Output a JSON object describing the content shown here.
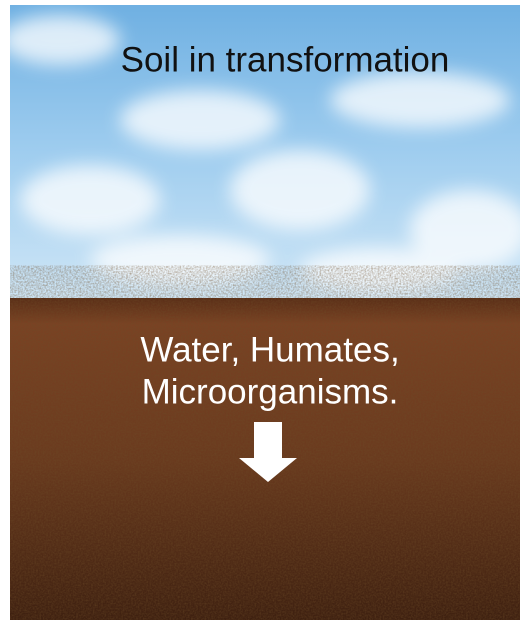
{
  "header": {
    "title": "Soil in transformation"
  },
  "caption": {
    "lines": [
      "Water, Humates,",
      "Microorganisms."
    ]
  }
}
